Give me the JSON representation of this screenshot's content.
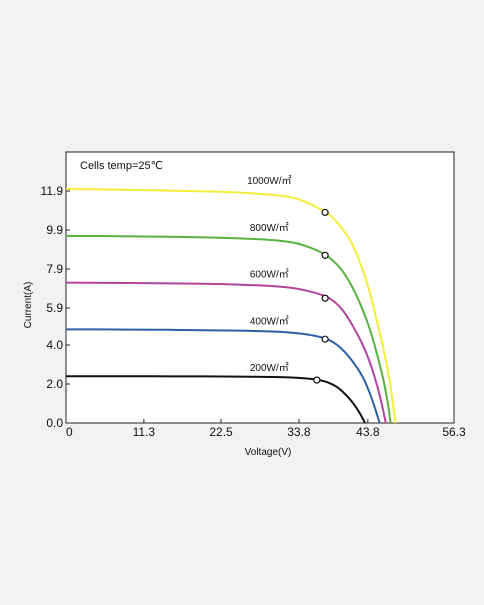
{
  "chart_data": {
    "type": "line",
    "title": "",
    "annotation": "Cells temp=25℃",
    "xlabel": "Voltage(V)",
    "ylabel": "Current(A)",
    "xlim": [
      0,
      56.3
    ],
    "ylim": [
      0,
      13.9
    ],
    "x_ticks": [
      "0",
      "11.3",
      "22.5",
      "33.8",
      "43.8",
      "56.3"
    ],
    "x_tick_values": [
      0,
      11.3,
      22.5,
      33.8,
      43.8,
      56.3
    ],
    "y_ticks": [
      "0.0",
      "2.0",
      "4.0",
      "5.9",
      "7.9",
      "9.9",
      "11.9"
    ],
    "y_tick_values": [
      0,
      2.0,
      4.0,
      5.9,
      7.9,
      9.9,
      11.9
    ],
    "grid": false,
    "series": [
      {
        "name": "1000W/㎡",
        "color": "#f2ee3a",
        "x": [
          0,
          5,
          10,
          15,
          20,
          25,
          30,
          33,
          35,
          37,
          38.5,
          40,
          41.5,
          43,
          44,
          45,
          46,
          46.8,
          47.4,
          47.8
        ],
        "y": [
          12.0,
          11.98,
          11.95,
          11.92,
          11.88,
          11.82,
          11.7,
          11.55,
          11.3,
          10.95,
          10.6,
          10.0,
          9.2,
          7.9,
          6.8,
          5.4,
          3.9,
          2.5,
          1.1,
          0
        ],
        "mpp": [
          37.6,
          10.8
        ]
      },
      {
        "name": "800W/㎡",
        "color": "#58b23f",
        "x": [
          0,
          5,
          10,
          15,
          20,
          25,
          30,
          33,
          35,
          37,
          38.5,
          40,
          41.5,
          43,
          44,
          45,
          46,
          46.7,
          47.1
        ],
        "y": [
          9.6,
          9.59,
          9.57,
          9.55,
          9.52,
          9.47,
          9.38,
          9.25,
          9.05,
          8.75,
          8.4,
          7.85,
          7.0,
          5.85,
          4.9,
          3.7,
          2.3,
          1.0,
          0
        ],
        "mpp": [
          37.6,
          8.6
        ]
      },
      {
        "name": "600W/㎡",
        "color": "#b2459e",
        "x": [
          0,
          5,
          10,
          15,
          20,
          25,
          30,
          33,
          35,
          37,
          38.5,
          40,
          41.5,
          43,
          44,
          45,
          45.8,
          46.4
        ],
        "y": [
          7.2,
          7.19,
          7.18,
          7.16,
          7.14,
          7.1,
          7.02,
          6.92,
          6.78,
          6.58,
          6.33,
          5.85,
          5.05,
          4.05,
          3.2,
          2.1,
          1.0,
          0
        ],
        "mpp": [
          37.6,
          6.4
        ]
      },
      {
        "name": "400W/㎡",
        "color": "#2f5fa8",
        "x": [
          0,
          5,
          10,
          15,
          20,
          25,
          30,
          33,
          35,
          37,
          38.5,
          40,
          41.5,
          43,
          44,
          44.8,
          45.5
        ],
        "y": [
          4.8,
          4.8,
          4.79,
          4.78,
          4.76,
          4.74,
          4.69,
          4.62,
          4.54,
          4.4,
          4.2,
          3.8,
          3.2,
          2.4,
          1.6,
          0.8,
          0
        ],
        "mpp": [
          37.6,
          4.3
        ]
      },
      {
        "name": "200W/㎡",
        "color": "#111111",
        "x": [
          0,
          5,
          10,
          15,
          20,
          25,
          30,
          33,
          35,
          36.5,
          38,
          39.5,
          41,
          42,
          42.8,
          43.4
        ],
        "y": [
          2.4,
          2.4,
          2.4,
          2.39,
          2.39,
          2.38,
          2.36,
          2.33,
          2.28,
          2.22,
          2.08,
          1.8,
          1.3,
          0.85,
          0.4,
          0
        ],
        "mpp": [
          36.4,
          2.2
        ]
      }
    ]
  }
}
